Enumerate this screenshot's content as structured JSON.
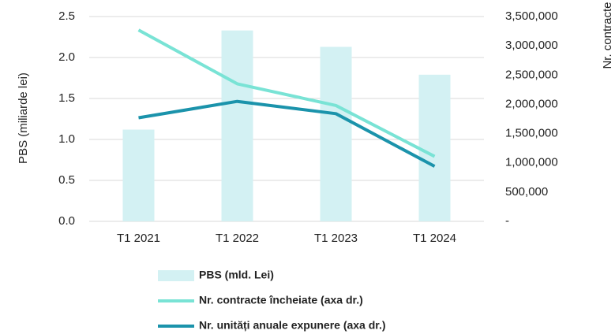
{
  "chart_data": {
    "type": "bar",
    "y_label": "PBS (miliarde lei)",
    "y2_label": "Nr. contracte",
    "categories": [
      "T1 2021",
      "T1 2022",
      "T1 2023",
      "T1 2024"
    ],
    "series": [
      {
        "name": "PBS (mld. Lei)",
        "type": "bar",
        "color": "#d3f1f3",
        "values": [
          1.12,
          2.33,
          2.13,
          1.79
        ]
      },
      {
        "name": "Nr. contracte încheiate (axa dr.)",
        "type": "line",
        "axis": "y2",
        "color": "#79e3d5",
        "values": [
          3270000,
          2350000,
          1980000,
          1110000
        ]
      },
      {
        "name": "Nr. unități anuale expunere (axa dr.)",
        "type": "line",
        "axis": "y2",
        "color": "#1b93ab",
        "values": [
          1770000,
          2050000,
          1840000,
          940000
        ]
      }
    ],
    "ylim": [
      0,
      2.5
    ],
    "yticks": [
      {
        "value": 0,
        "label": "0.0"
      },
      0.5,
      {
        "value": 1,
        "label": "1.0"
      },
      1.5,
      {
        "value": 2,
        "label": "2.0"
      },
      2.5
    ],
    "y2lim": [
      0,
      3500000
    ],
    "y2ticks": [
      {
        "value": 0,
        "label": "-"
      },
      {
        "value": 500000,
        "label": "500,000"
      },
      {
        "value": 1000000,
        "label": "1,000,000"
      },
      {
        "value": 1500000,
        "label": "1,500,000"
      },
      {
        "value": 2000000,
        "label": "2,000,000"
      },
      {
        "value": 2500000,
        "label": "2,500,000"
      },
      {
        "value": 3000000,
        "label": "3,000,000"
      },
      {
        "value": 3500000,
        "label": "3,500,000"
      }
    ],
    "grid": true
  }
}
